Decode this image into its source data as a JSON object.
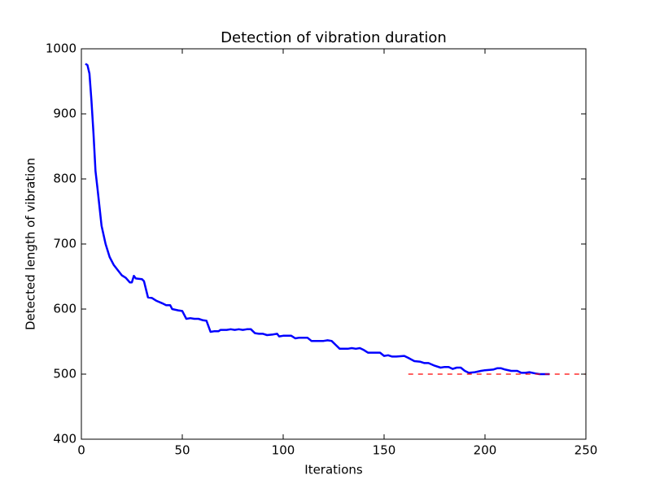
{
  "chart_data": {
    "type": "line",
    "title": "Detection of vibration duration",
    "xlabel": "Iterations",
    "ylabel": "Detected length of vibration",
    "xlim": [
      0,
      250
    ],
    "xticks": [
      0,
      50,
      100,
      150,
      200,
      250
    ],
    "ylim": [
      400,
      1000
    ],
    "yticks": [
      400,
      500,
      600,
      700,
      800,
      900,
      1000
    ],
    "series": [
      {
        "color": "#0000ff",
        "linestyle": "solid",
        "x": [
          2,
          3,
          4,
          5,
          6,
          7,
          8,
          10,
          12,
          14,
          16,
          18,
          20,
          22,
          24,
          25,
          26,
          27,
          30,
          31,
          33,
          35,
          37,
          40,
          42,
          44,
          45,
          48,
          50,
          52,
          54,
          56,
          58,
          60,
          62,
          64,
          66,
          68,
          69,
          72,
          74,
          76,
          78,
          80,
          82,
          84,
          86,
          88,
          90,
          92,
          95,
          97,
          98,
          100,
          104,
          106,
          108,
          112,
          114,
          120,
          122,
          124,
          126,
          128,
          132,
          134,
          136,
          138,
          140,
          142,
          148,
          150,
          152,
          154,
          156,
          160,
          162,
          165,
          168,
          170,
          172,
          175,
          178,
          180,
          182,
          184,
          186,
          188,
          190,
          192,
          195,
          198,
          200,
          204,
          206,
          208,
          210,
          213,
          216,
          218,
          220,
          222,
          225,
          227,
          230,
          232
        ],
        "values": [
          977,
          975,
          962,
          920,
          870,
          812,
          785,
          728,
          700,
          680,
          668,
          660,
          652,
          648,
          641,
          641,
          651,
          647,
          646,
          643,
          618,
          617,
          613,
          609,
          606,
          606,
          600,
          598,
          597,
          585,
          586,
          585,
          585,
          583,
          582,
          565,
          566,
          566,
          568,
          568,
          569,
          568,
          569,
          568,
          569,
          569,
          563,
          562,
          562,
          560,
          561,
          562,
          558,
          559,
          559,
          555,
          556,
          556,
          551,
          551,
          552,
          551,
          545,
          539,
          539,
          540,
          539,
          540,
          537,
          533,
          533,
          528,
          529,
          527,
          527,
          528,
          525,
          520,
          519,
          517,
          517,
          513,
          510,
          511,
          511,
          508,
          510,
          510,
          505,
          502,
          503,
          505,
          506,
          507,
          509,
          509,
          507,
          505,
          505,
          502,
          502,
          503,
          501,
          500,
          500,
          500
        ]
      },
      {
        "color": "#ff0000",
        "linestyle": "dashed",
        "x": [
          162,
          250
        ],
        "values": [
          500,
          500
        ]
      }
    ]
  }
}
